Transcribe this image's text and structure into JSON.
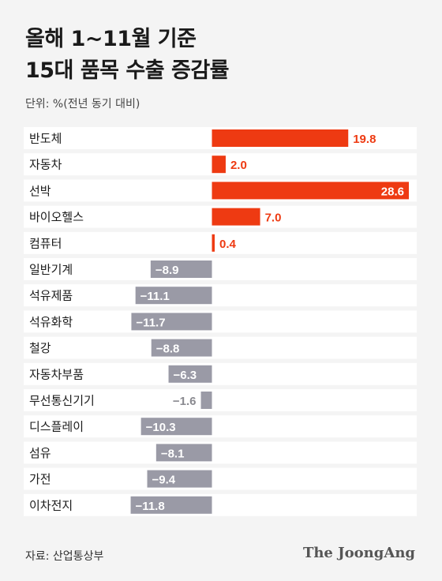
{
  "title_line1": "올해 1~11월 기준",
  "title_line2": "15대 품목 수출 증감률",
  "unit": "단위: %(전년 동기 대비)",
  "source": "자료: 산업통상부",
  "brand": "The JoongAng",
  "colors": {
    "positive": "#ee3a12",
    "negative": "#9a9aa6",
    "small_negative_label": "#8a8a90",
    "row_bg": "#ffffff"
  },
  "chart_data": {
    "type": "bar",
    "orientation": "horizontal",
    "categories": [
      "반도체",
      "자동차",
      "선박",
      "바이오헬스",
      "컴퓨터",
      "일반기계",
      "석유제품",
      "석유화학",
      "철강",
      "자동차부품",
      "무선통신기기",
      "디스플레이",
      "섬유",
      "가전",
      "이차전지"
    ],
    "values": [
      19.8,
      2.0,
      28.6,
      7.0,
      0.4,
      -8.9,
      -11.1,
      -11.7,
      -8.8,
      -6.3,
      -1.6,
      -10.3,
      -8.1,
      -9.4,
      -11.8
    ],
    "labels": [
      "19.8",
      "2.0",
      "28.6",
      "7.0",
      "0.4",
      "−8.9",
      "−11.1",
      "−11.7",
      "−8.8",
      "−6.3",
      "−1.6",
      "−10.3",
      "−8.1",
      "−9.4",
      "−11.8"
    ],
    "xlim": [
      -12.5,
      28.6
    ]
  }
}
